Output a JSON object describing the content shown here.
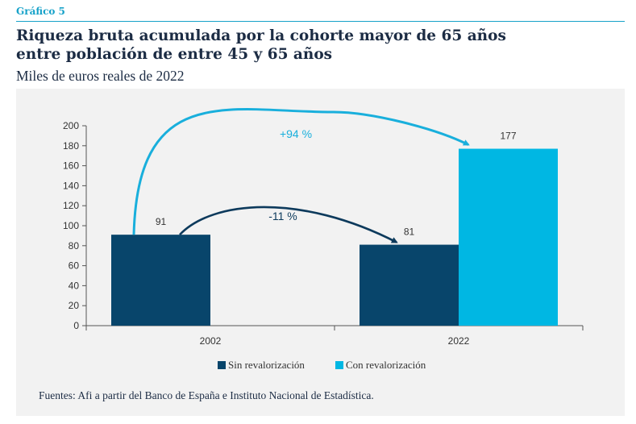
{
  "header": {
    "label": "Gráfico 5",
    "title_line1": "Riqueza bruta acumulada por la cohorte mayor de 65 años",
    "title_line2": "entre población de entre 45 y 65 años",
    "subtitle": "Miles de euros reales de 2022"
  },
  "footer": {
    "source": "Fuentes: Afi a partir del Banco de España e Instituto Nacional de Estadística."
  },
  "colors": {
    "dark": "#08456b",
    "light": "#00b7e3",
    "arrow_dark": "#0d3a5c",
    "arrow_light": "#19afdc"
  },
  "chart_data": {
    "type": "bar",
    "title": "Riqueza bruta acumulada por la cohorte mayor de 65 años entre población de entre 45 y 65 años",
    "ylabel": "Miles de euros reales de 2022",
    "categories": [
      "2002",
      "2022"
    ],
    "series": [
      {
        "name": "Sin revalorización",
        "values": [
          91,
          81
        ]
      },
      {
        "name": "Con revalorización",
        "values": [
          null,
          177
        ]
      }
    ],
    "ylim": [
      0,
      200
    ],
    "yticks": [
      0,
      20,
      40,
      60,
      80,
      100,
      120,
      140,
      160,
      180,
      200
    ],
    "grid": false,
    "legend": "bottom",
    "annotations": [
      {
        "text": "+94 %",
        "from_series": "Sin revalorización",
        "from_category": "2002",
        "to_series": "Con revalorización",
        "to_category": "2022"
      },
      {
        "text": "-11 %",
        "from_series": "Sin revalorización",
        "from_category": "2002",
        "to_series": "Sin revalorización",
        "to_category": "2022"
      }
    ]
  }
}
